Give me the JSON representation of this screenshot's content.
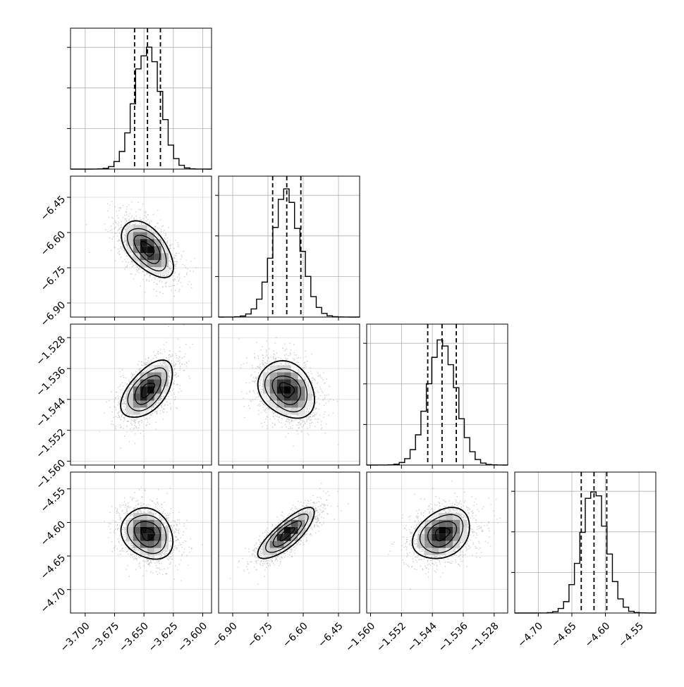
{
  "chart_data": {
    "type": "corner",
    "grid": true,
    "hist_color": "#000000",
    "scatter_color": "#9a9a9a",
    "density_color": "#000000",
    "parameters": [
      {
        "range": [
          -3.7125,
          -3.5925
        ],
        "ticks": [
          -3.7,
          -3.675,
          -3.65,
          -3.625,
          -3.6
        ],
        "tick_labels": [
          "−3.700",
          "−3.675",
          "−3.650",
          "−3.625",
          "−3.600"
        ],
        "mean": -3.647,
        "sigma": 0.011,
        "quantiles": [
          -3.658,
          -3.647,
          -3.636
        ]
      },
      {
        "range": [
          -6.96,
          -6.36
        ],
        "ticks": [
          -6.9,
          -6.75,
          -6.6,
          -6.45
        ],
        "tick_labels": [
          "−6.90",
          "−6.75",
          "−6.60",
          "−6.45"
        ],
        "mean": -6.67,
        "sigma": 0.06,
        "quantiles": [
          -6.73,
          -6.67,
          -6.61
        ]
      },
      {
        "range": [
          -1.561,
          -1.5245
        ],
        "ticks": [
          -1.56,
          -1.552,
          -1.544,
          -1.536,
          -1.528
        ],
        "tick_labels": [
          "−1.560",
          "−1.552",
          "−1.544",
          "−1.536",
          "−1.528"
        ],
        "mean": -1.5415,
        "sigma": 0.0037,
        "quantiles": [
          -1.5452,
          -1.5415,
          -1.5378
        ]
      },
      {
        "range": [
          -4.735,
          -4.525
        ],
        "ticks": [
          -4.7,
          -4.65,
          -4.6,
          -4.55
        ],
        "tick_labels": [
          "−4.70",
          "−4.65",
          "−4.60",
          "−4.55"
        ],
        "mean": -4.617,
        "sigma": 0.019,
        "quantiles": [
          -4.636,
          -4.617,
          -4.598
        ]
      }
    ],
    "correlations": [
      [
        1.0,
        -0.55,
        0.55,
        -0.2
      ],
      [
        -0.55,
        1.0,
        -0.25,
        0.8
      ],
      [
        0.55,
        -0.25,
        1.0,
        0.3
      ],
      [
        -0.2,
        0.8,
        0.3,
        1.0
      ]
    ]
  }
}
